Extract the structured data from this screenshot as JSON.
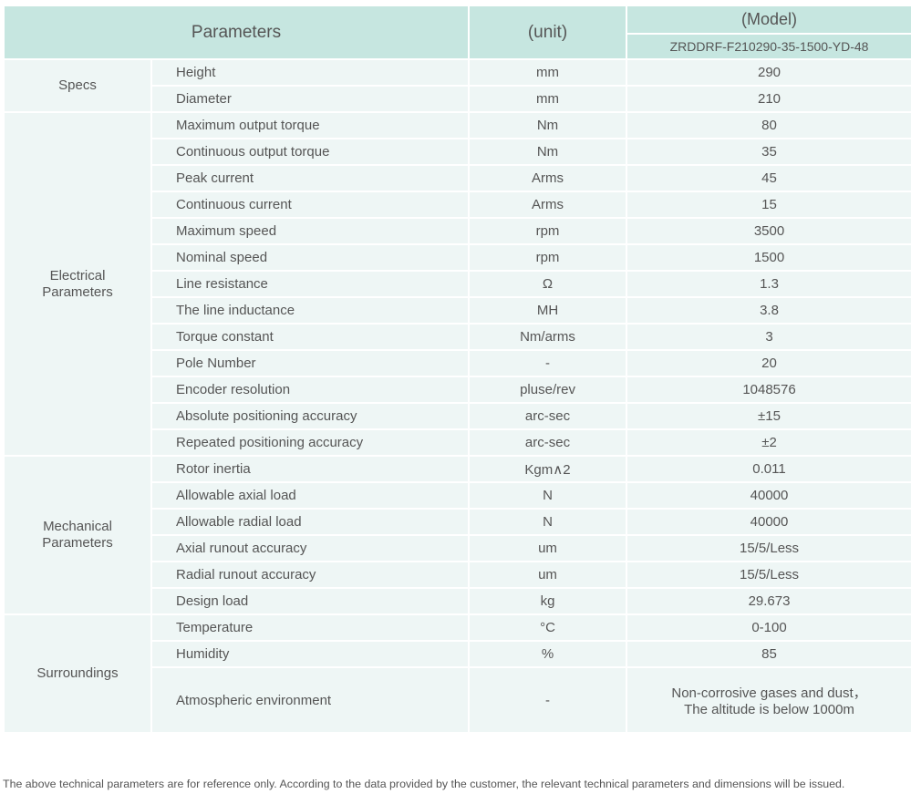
{
  "header": {
    "parameters": "Parameters",
    "unit": "(unit)",
    "model": "(Model)",
    "model_name": "ZRDDRF-F210290-35-1500-YD-48"
  },
  "groups": [
    {
      "name": "Specs",
      "rows": [
        [
          "Height",
          "mm",
          "290"
        ],
        [
          "Diameter",
          "mm",
          "210"
        ]
      ]
    },
    {
      "name": "Electrical Parameters",
      "rows": [
        [
          "Maximum output torque",
          "Nm",
          "80"
        ],
        [
          "Continuous output torque",
          "Nm",
          "35"
        ],
        [
          "Peak current",
          "Arms",
          "45"
        ],
        [
          "Continuous current",
          "Arms",
          "15"
        ],
        [
          "Maximum speed",
          "rpm",
          "3500"
        ],
        [
          "Nominal speed",
          "rpm",
          "1500"
        ],
        [
          "Line resistance",
          "Ω",
          "1.3"
        ],
        [
          "The line inductance",
          "MH",
          "3.8"
        ],
        [
          "Torque constant",
          "Nm/arms",
          "3"
        ],
        [
          "Pole Number",
          "-",
          "20"
        ],
        [
          "Encoder resolution",
          "pluse/rev",
          "1048576"
        ],
        [
          "Absolute positioning accuracy",
          "arc-sec",
          "±15"
        ],
        [
          "Repeated positioning accuracy",
          "arc-sec",
          "±2"
        ]
      ]
    },
    {
      "name": "Mechanical Parameters",
      "rows": [
        [
          "Rotor inertia",
          "Kgm∧2",
          "0.011"
        ],
        [
          "Allowable axial load",
          "N",
          "40000"
        ],
        [
          "Allowable radial load",
          "N",
          "40000"
        ],
        [
          "Axial runout accuracy",
          "um",
          "15/5/Less"
        ],
        [
          "Radial runout accuracy",
          "um",
          "15/5/Less"
        ],
        [
          "Design load",
          "kg",
          "29.673"
        ]
      ]
    },
    {
      "name": "Surroundings",
      "rows": [
        [
          "Temperature",
          "°C",
          "0-100"
        ],
        [
          "Humidity",
          "%",
          "85"
        ],
        [
          "Atmospheric environment",
          "-",
          [
            "Non-corrosive gases and dust，",
            "The altitude is below 1000m"
          ]
        ]
      ]
    }
  ],
  "footnote": "The above technical parameters are for reference only. According to the data provided by the customer, the relevant technical parameters and dimensions will be issued."
}
